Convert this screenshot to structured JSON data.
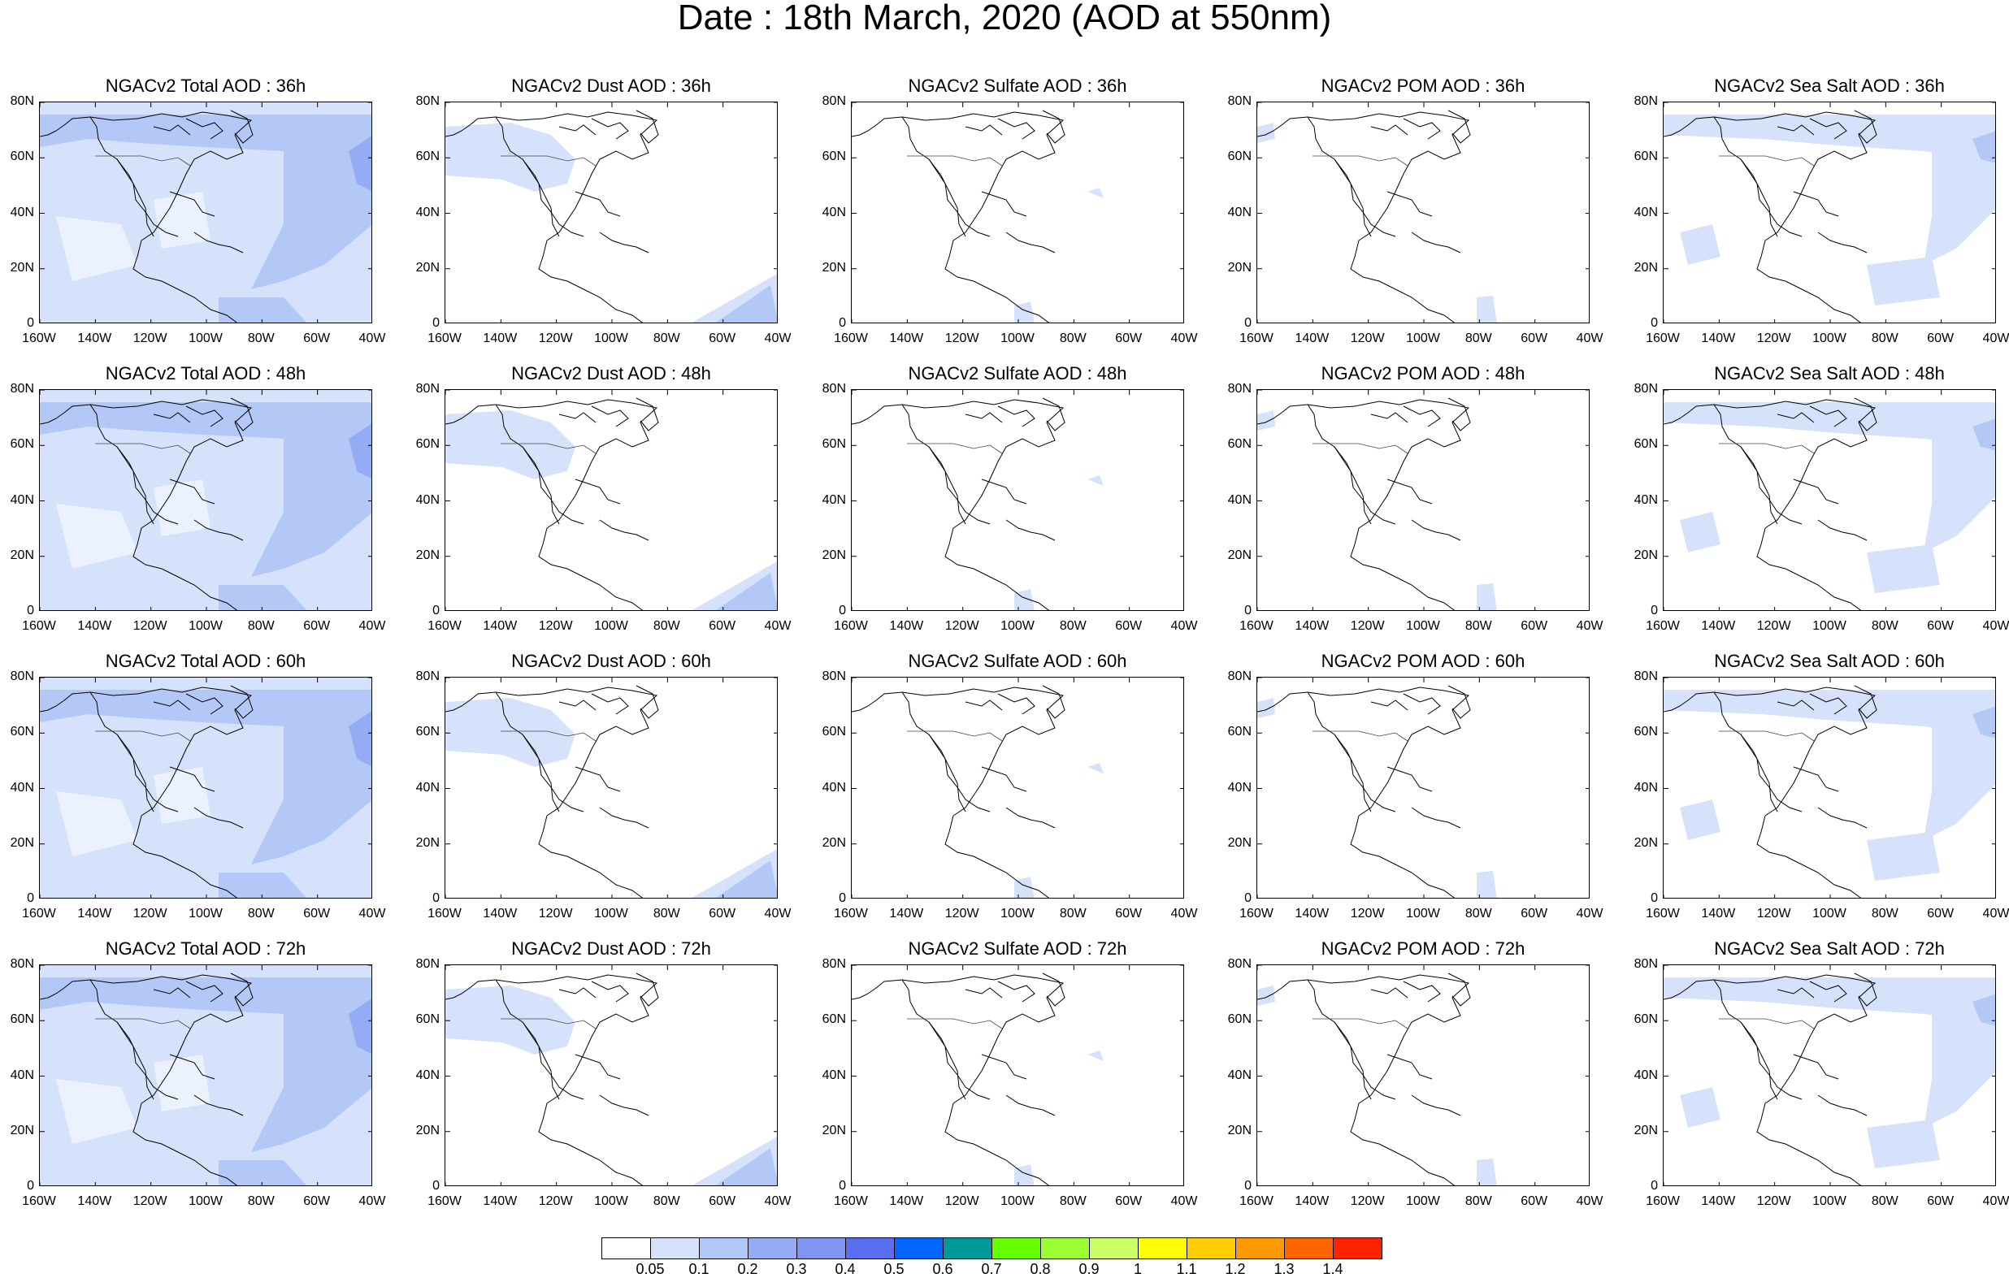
{
  "title": "Date : 18th March, 2020 (AOD at 550nm)",
  "y_ticks": [
    "80N",
    "60N",
    "40N",
    "20N",
    "0"
  ],
  "x_ticks": [
    "160W",
    "140W",
    "120W",
    "100W",
    "80W",
    "60W",
    "40W"
  ],
  "panel_titles": [
    [
      "NGACv2 Total AOD : 36h",
      "NGACv2 Dust AOD : 36h",
      "NGACv2 Sulfate AOD : 36h",
      "NGACv2 POM AOD : 36h",
      "NGACv2 Sea Salt AOD : 36h"
    ],
    [
      "NGACv2 Total AOD : 48h",
      "NGACv2 Dust AOD : 48h",
      "NGACv2 Sulfate AOD : 48h",
      "NGACv2 POM AOD : 48h",
      "NGACv2 Sea Salt AOD : 48h"
    ],
    [
      "NGACv2 Total AOD : 60h",
      "NGACv2 Dust AOD : 60h",
      "NGACv2 Sulfate AOD : 60h",
      "NGACv2 POM AOD : 60h",
      "NGACv2 Sea Salt AOD : 60h"
    ],
    [
      "NGACv2 Total AOD : 72h",
      "NGACv2 Dust AOD : 72h",
      "NGACv2 Sulfate AOD : 72h",
      "NGACv2 POM AOD : 72h",
      "NGACv2 Sea Salt  AOD : 72h"
    ]
  ],
  "colorbar": {
    "colors": [
      "#ffffff",
      "#d6e2fb",
      "#b4c8f8",
      "#93acf5",
      "#7f95f0",
      "#5a6ff0",
      "#0066ff",
      "#009999",
      "#66ff00",
      "#99ff33",
      "#ccff66",
      "#ffff00",
      "#ffcc00",
      "#ff9900",
      "#ff6600",
      "#ff2200"
    ],
    "labels": [
      "0.05",
      "0.1",
      "0.2",
      "0.3",
      "0.4",
      "0.5",
      "0.6",
      "0.7",
      "0.8",
      "0.9",
      "1",
      "1.1",
      "1.2",
      "1.3",
      "1.4"
    ]
  }
}
